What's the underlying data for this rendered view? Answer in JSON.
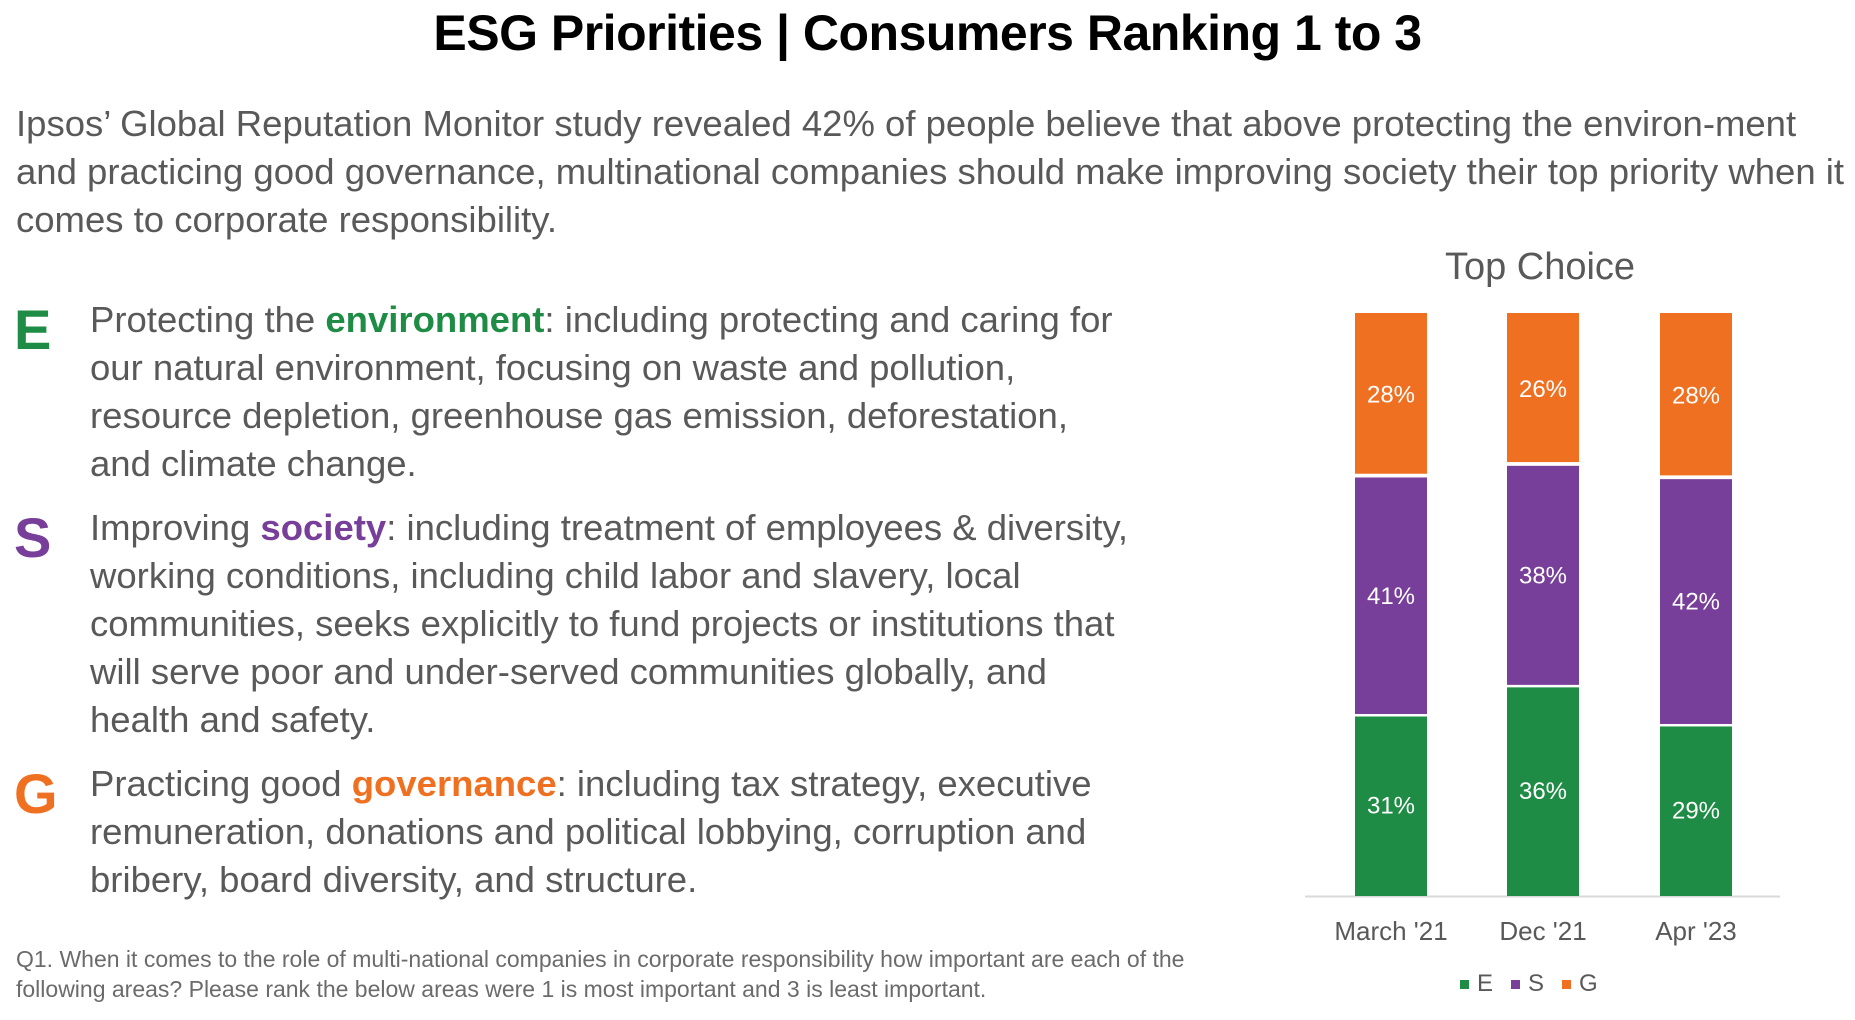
{
  "title": "ESG Priorities | Consumers Ranking 1 to 3",
  "intro": "Ipsos’ Global Reputation Monitor study revealed 42% of people believe that above protecting the environ-ment and practicing good governance, multinational companies should make improving society their top priority when it comes to corporate responsibility.",
  "items": [
    {
      "letter": "E",
      "lead": "Protecting the ",
      "keyword": "environment",
      "rest": ":  including protecting and caring for our natural environment, focusing on waste and pollution, resource depletion, greenhouse gas emission, deforestation, and climate change.",
      "color": "#1e8c45"
    },
    {
      "letter": "S",
      "lead": "Improving ",
      "keyword": "society",
      "rest": ":  including treatment of employees & diversity, working conditions, including child labor and slavery, local communities, seeks explicitly to fund projects or institutions that will serve poor and under-served communities globally, and health and safety.",
      "color": "#773f99"
    },
    {
      "letter": "G",
      "lead": "Practicing good ",
      "keyword": "governance",
      "rest": ":  including tax strategy, executive remuneration, donations and political lobbying, corruption and bribery, board diversity, and structure.",
      "color": "#f07022"
    }
  ],
  "footnote": "Q1. When it comes to the role of multi-national companies in corporate responsibility how important are each of the following areas? Please rank the below areas were 1 is most important and 3 is least important.",
  "chart_data": {
    "type": "bar",
    "stacked": true,
    "title": "Top Choice",
    "categories": [
      "March '21",
      "Dec '21",
      "Apr '23"
    ],
    "series": [
      {
        "name": "E",
        "values": [
          31,
          36,
          29
        ],
        "labels": [
          "31%",
          "36%",
          "29%"
        ],
        "color": "#1e8c45"
      },
      {
        "name": "S",
        "values": [
          41,
          38,
          42
        ],
        "labels": [
          "41%",
          "38%",
          "42%"
        ],
        "color": "#773f99"
      },
      {
        "name": "G",
        "values": [
          28,
          26,
          28
        ],
        "labels": [
          "28%",
          "26%",
          "28%"
        ],
        "color": "#f07022"
      }
    ],
    "ylim": [
      0,
      100
    ],
    "legend": "bottom",
    "grid": false
  }
}
